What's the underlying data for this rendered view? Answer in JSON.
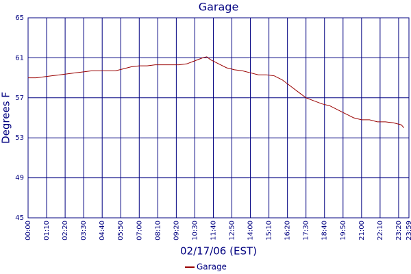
{
  "chart_data": {
    "type": "line",
    "title": "Garage",
    "x_label": "02/17/06 (EST)",
    "y_label": "Degrees F",
    "x": [
      0,
      30,
      60,
      90,
      120,
      150,
      180,
      210,
      240,
      270,
      300,
      330,
      360,
      390,
      420,
      450,
      480,
      510,
      540,
      570,
      600,
      630,
      660,
      675,
      690,
      720,
      750,
      780,
      810,
      840,
      870,
      900,
      930,
      960,
      990,
      1020,
      1050,
      1080,
      1110,
      1140,
      1170,
      1200,
      1230,
      1260,
      1290,
      1320,
      1350,
      1380,
      1410,
      1420
    ],
    "series": [
      {
        "name": "Garage",
        "color": "#990000",
        "values": [
          59.0,
          59.0,
          59.1,
          59.2,
          59.3,
          59.4,
          59.5,
          59.6,
          59.7,
          59.7,
          59.7,
          59.7,
          59.9,
          60.1,
          60.2,
          60.2,
          60.3,
          60.3,
          60.3,
          60.3,
          60.4,
          60.7,
          61.0,
          61.1,
          60.8,
          60.4,
          60.0,
          59.8,
          59.7,
          59.5,
          59.3,
          59.3,
          59.2,
          58.8,
          58.2,
          57.6,
          57.0,
          56.7,
          56.4,
          56.2,
          55.8,
          55.4,
          55.0,
          54.8,
          54.8,
          54.6,
          54.6,
          54.5,
          54.3,
          54.0
        ]
      }
    ],
    "xlim": [
      0,
      1439
    ],
    "xticks": [
      {
        "value": 0,
        "label": "00:00"
      },
      {
        "value": 70,
        "label": "01:10"
      },
      {
        "value": 140,
        "label": "02:20"
      },
      {
        "value": 210,
        "label": "03:30"
      },
      {
        "value": 280,
        "label": "04:40"
      },
      {
        "value": 350,
        "label": "05:50"
      },
      {
        "value": 420,
        "label": "07:00"
      },
      {
        "value": 490,
        "label": "08:10"
      },
      {
        "value": 560,
        "label": "09:20"
      },
      {
        "value": 630,
        "label": "10:30"
      },
      {
        "value": 700,
        "label": "11:40"
      },
      {
        "value": 770,
        "label": "12:50"
      },
      {
        "value": 840,
        "label": "14:00"
      },
      {
        "value": 910,
        "label": "15:10"
      },
      {
        "value": 980,
        "label": "16:20"
      },
      {
        "value": 1050,
        "label": "17:30"
      },
      {
        "value": 1120,
        "label": "18:40"
      },
      {
        "value": 1190,
        "label": "19:50"
      },
      {
        "value": 1260,
        "label": "21:00"
      },
      {
        "value": 1330,
        "label": "22:10"
      },
      {
        "value": 1400,
        "label": "23:20"
      },
      {
        "value": 1439,
        "label": "23:59"
      }
    ],
    "ylim": [
      45,
      65
    ],
    "yticks": [
      45,
      49,
      53,
      57,
      61,
      65
    ],
    "grid": true
  }
}
